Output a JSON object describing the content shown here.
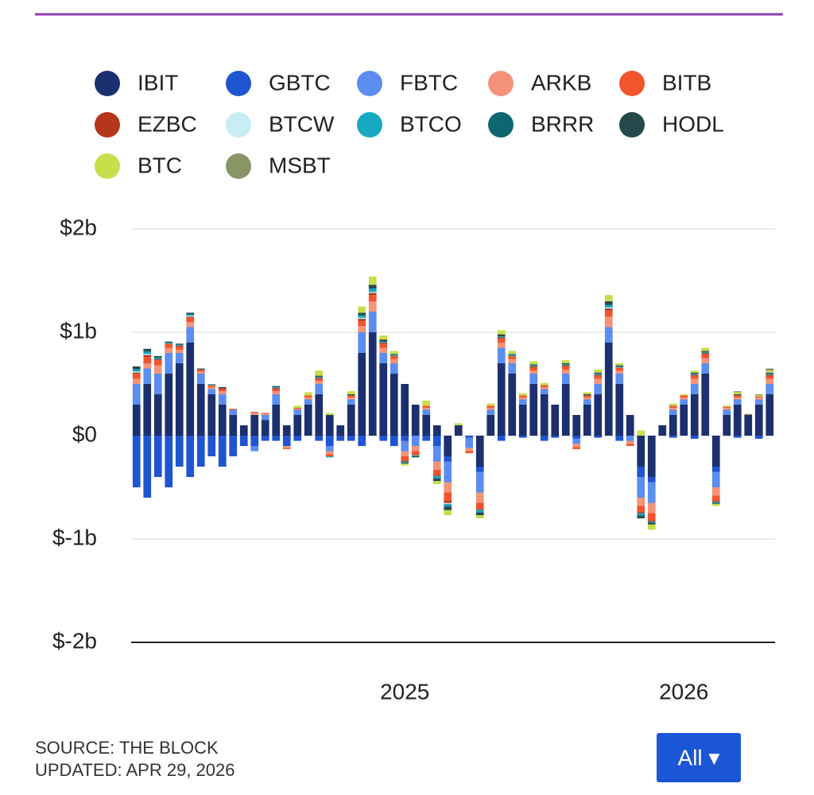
{
  "chart_data": {
    "type": "stacked-bar",
    "categories": [
      null,
      null,
      null,
      null,
      null,
      null,
      null,
      null,
      null,
      null,
      null,
      null,
      null,
      null,
      null,
      null,
      null,
      null,
      null,
      null,
      null,
      null,
      null,
      null,
      null,
      null,
      null,
      null,
      null,
      null,
      null,
      null,
      null,
      null,
      null,
      null,
      null,
      null,
      null,
      null,
      null,
      null,
      null,
      null,
      null,
      null,
      null,
      null,
      null,
      null,
      null,
      null,
      null,
      null,
      null,
      null,
      null,
      null,
      null,
      null
    ],
    "ylim": [
      -2,
      2
    ],
    "yticks": [
      {
        "value": -2,
        "label": "$-2b"
      },
      {
        "value": -1,
        "label": "$-1b"
      },
      {
        "value": 0,
        "label": "$0"
      },
      {
        "value": 1,
        "label": "$1b"
      },
      {
        "value": 2,
        "label": "$2b"
      }
    ],
    "xticks": [
      {
        "value": 25,
        "label": "2025"
      },
      {
        "value": 51,
        "label": "2026"
      }
    ],
    "grid": true,
    "legend": "top",
    "series": [
      {
        "name": "IBIT",
        "color": "#1c2f6e",
        "values": [
          0.3,
          0.5,
          0.4,
          0.6,
          0.7,
          0.9,
          0.5,
          0.4,
          0.3,
          0.2,
          0.1,
          0.2,
          0.15,
          0.3,
          0.1,
          0.2,
          0.3,
          0.4,
          0.2,
          0.1,
          0.3,
          0.8,
          1.0,
          0.7,
          0.6,
          0.5,
          0.3,
          0.2,
          0.1,
          -0.2,
          0.1,
          0,
          -0.3,
          0.2,
          0.7,
          0.6,
          0.3,
          0.5,
          0.4,
          0.3,
          0.5,
          0.2,
          0.3,
          0.4,
          0.9,
          0.5,
          0.2,
          -0.3,
          -0.4,
          0.1,
          0.2,
          0.3,
          0.4,
          0.6,
          -0.3,
          0.2,
          0.3,
          0.2,
          0.3,
          0.4
        ]
      },
      {
        "name": "GBTC",
        "color": "#1f55d0",
        "values": [
          -0.5,
          -0.6,
          -0.4,
          -0.5,
          -0.3,
          -0.4,
          -0.3,
          -0.2,
          -0.3,
          -0.2,
          -0.1,
          -0.1,
          -0.05,
          -0.05,
          -0.1,
          -0.05,
          0,
          -0.05,
          -0.1,
          -0.05,
          -0.05,
          -0.1,
          0,
          -0.05,
          -0.1,
          -0.05,
          0,
          -0.05,
          -0.1,
          -0.05,
          0,
          -0.02,
          -0.05,
          0,
          -0.05,
          0,
          -0.02,
          0,
          -0.05,
          -0.02,
          0,
          -0.03,
          0,
          -0.02,
          0,
          -0.05,
          0,
          -0.1,
          -0.05,
          0,
          -0.02,
          0,
          -0.03,
          0,
          -0.05,
          0,
          -0.02,
          0,
          -0.03,
          0
        ]
      },
      {
        "name": "FBTC",
        "color": "#5b8ef0",
        "values": [
          0.2,
          0.15,
          0.2,
          0.2,
          0.1,
          0.15,
          0.1,
          0.05,
          0.1,
          0.05,
          0,
          -0.05,
          0.05,
          0.1,
          0,
          0.05,
          0.05,
          0.1,
          -0.05,
          0,
          0.05,
          0.2,
          0.2,
          0.1,
          0.1,
          -0.1,
          -0.1,
          0.05,
          -0.15,
          -0.2,
          0,
          -0.1,
          -0.2,
          0.05,
          0.15,
          0.1,
          0.05,
          0.1,
          0.05,
          0,
          0.1,
          -0.05,
          0.05,
          0.1,
          0.15,
          0.1,
          -0.05,
          -0.2,
          -0.2,
          0,
          0.05,
          0.05,
          0.1,
          0.1,
          -0.15,
          0.05,
          0.05,
          0,
          0.05,
          0.1
        ]
      },
      {
        "name": "ARKB",
        "color": "#f4937a",
        "values": [
          0.05,
          0.05,
          0.08,
          0.05,
          0.03,
          0.05,
          0.02,
          0.02,
          0.03,
          0,
          0,
          0.02,
          0.01,
          0.03,
          -0.02,
          0.01,
          0.02,
          0.03,
          -0.03,
          0,
          0.02,
          0.06,
          0.1,
          0.05,
          0.04,
          -0.05,
          -0.05,
          0.02,
          -0.08,
          -0.1,
          0,
          -0.03,
          -0.1,
          0.02,
          0.05,
          0.04,
          0.02,
          0.03,
          0.02,
          0,
          0.04,
          -0.03,
          0.02,
          0.05,
          0.1,
          0.03,
          -0.03,
          -0.08,
          -0.1,
          0,
          0.02,
          0.02,
          0.05,
          0.05,
          -0.08,
          0.02,
          0.02,
          0,
          0.02,
          0.05
        ]
      },
      {
        "name": "BITB",
        "color": "#f2552c",
        "values": [
          0.05,
          0.06,
          0.05,
          0.04,
          0.03,
          0.04,
          0.02,
          0.02,
          0.02,
          0.01,
          0,
          0.01,
          0.01,
          0.02,
          -0.01,
          0.01,
          0.02,
          0.02,
          -0.02,
          0,
          0.02,
          0.05,
          0.06,
          0.04,
          0.03,
          -0.04,
          -0.04,
          0.02,
          -0.05,
          -0.08,
          0,
          -0.02,
          -0.06,
          0.02,
          0.04,
          0.03,
          0.02,
          0.03,
          0.02,
          0,
          0.03,
          -0.02,
          0.02,
          0.03,
          0.06,
          0.03,
          -0.02,
          -0.06,
          -0.07,
          0,
          0.02,
          0.02,
          0.03,
          0.04,
          -0.05,
          0.01,
          0.02,
          0,
          0.01,
          0.03
        ]
      },
      {
        "name": "EZBC",
        "color": "#b5361c",
        "values": [
          0.01,
          0.02,
          0.01,
          0,
          0.01,
          0.01,
          0,
          0,
          0.01,
          0,
          0,
          0,
          0,
          0.01,
          0,
          0,
          0,
          0.01,
          0,
          0,
          0,
          0.02,
          0.02,
          0.01,
          0,
          -0.01,
          0,
          0,
          -0.01,
          -0.02,
          0,
          0,
          -0.01,
          0,
          0.01,
          0,
          0,
          0.01,
          0,
          0,
          0.01,
          0,
          0,
          0.01,
          0.02,
          0,
          0,
          -0.01,
          -0.01,
          0,
          0,
          0,
          0.01,
          0.01,
          -0.01,
          0,
          0,
          0,
          0,
          0.01
        ]
      },
      {
        "name": "BTCW",
        "color": "#c8eef5",
        "values": [
          0.01,
          0.01,
          0,
          0,
          0,
          0.01,
          0,
          0,
          0,
          0,
          0,
          0,
          0,
          0,
          0,
          0,
          0,
          0,
          0,
          0,
          0,
          0.01,
          0.01,
          0,
          0,
          0,
          0,
          0,
          0,
          -0.01,
          0,
          0,
          0,
          0,
          0,
          0,
          0,
          0,
          0,
          0,
          0,
          0,
          0,
          0,
          0.01,
          0,
          0,
          0,
          0,
          0,
          0,
          0,
          0,
          0,
          0,
          0,
          0,
          0,
          0,
          0
        ]
      },
      {
        "name": "BTCO",
        "color": "#17a9c2",
        "values": [
          0.02,
          0.02,
          0.01,
          0.01,
          0.01,
          0.01,
          0,
          0.01,
          0,
          0,
          0,
          0,
          0,
          0.01,
          0,
          0,
          0,
          0.01,
          -0.01,
          0,
          0,
          0.02,
          0.03,
          0.01,
          0.01,
          -0.01,
          -0.01,
          0,
          -0.02,
          -0.02,
          0,
          0,
          -0.02,
          0,
          0.01,
          0.01,
          0,
          0.01,
          0,
          0,
          0.01,
          0,
          0,
          0.01,
          0.02,
          0.01,
          0,
          -0.02,
          -0.01,
          0,
          0,
          0,
          0.01,
          0.01,
          -0.01,
          0,
          0,
          0,
          0,
          0.01
        ]
      },
      {
        "name": "BRRR",
        "color": "#0e6670",
        "values": [
          0.01,
          0.01,
          0.01,
          0,
          0,
          0.01,
          0,
          0,
          0,
          0,
          0,
          0,
          0,
          0,
          0,
          0,
          0,
          0,
          0,
          0,
          0,
          0.01,
          0.01,
          0,
          0,
          0,
          0,
          0,
          -0.01,
          -0.01,
          0,
          0,
          -0.01,
          0,
          0,
          0,
          0,
          0,
          0,
          0,
          0,
          0,
          0,
          0,
          0.01,
          0,
          0,
          -0.01,
          0,
          0,
          0,
          0,
          0,
          0,
          0,
          0,
          0,
          0,
          0,
          0
        ]
      },
      {
        "name": "HODL",
        "color": "#25484a",
        "values": [
          0.02,
          0.02,
          0.01,
          0.01,
          0.01,
          0.01,
          0.01,
          0,
          0.01,
          0,
          0,
          0,
          0,
          0.01,
          0,
          0,
          0,
          0.01,
          0,
          0,
          0.01,
          0.02,
          0.03,
          0.02,
          0.01,
          -0.01,
          -0.01,
          0,
          -0.02,
          -0.03,
          0,
          0,
          -0.02,
          0,
          0.02,
          0.01,
          0,
          0.01,
          0,
          0,
          0.01,
          0,
          0.01,
          0.01,
          0.03,
          0.01,
          0,
          -0.02,
          -0.02,
          0,
          0,
          0,
          0.01,
          0.01,
          -0.01,
          0,
          0.01,
          0,
          0,
          0.01
        ]
      },
      {
        "name": "BTC",
        "color": "#c5e04a",
        "values": [
          0,
          0,
          0,
          0,
          0,
          0,
          0,
          0,
          0,
          0,
          0,
          0,
          0,
          0,
          0,
          0.02,
          0.03,
          0.05,
          0.02,
          0,
          0.03,
          0.06,
          0.08,
          0.04,
          0.03,
          -0.02,
          0,
          0.05,
          -0.03,
          -0.05,
          0.02,
          0,
          -0.03,
          0.02,
          0.04,
          0.03,
          0.02,
          0.03,
          0.02,
          0,
          0.03,
          0,
          0.02,
          0.03,
          0.06,
          0.02,
          0,
          0.05,
          -0.05,
          0,
          0.02,
          0.01,
          0.02,
          0.03,
          -0.02,
          0.01,
          0.02,
          0,
          0.01,
          0.02
        ]
      },
      {
        "name": "MSBT",
        "color": "#8a9565",
        "values": [
          0,
          0,
          0,
          0,
          0,
          0,
          0,
          0,
          0,
          0,
          0,
          0,
          0,
          0,
          0,
          0,
          0,
          0,
          0,
          0,
          0,
          0,
          0,
          0,
          0,
          0,
          0,
          0,
          0,
          0,
          0,
          0,
          0,
          0,
          0,
          0,
          0,
          0,
          0,
          0,
          0,
          0,
          0,
          0,
          0,
          0,
          0,
          0,
          0,
          0,
          0,
          0,
          0,
          0,
          0,
          0,
          0.01,
          0.01,
          0.01,
          0.02
        ]
      }
    ]
  },
  "footer": {
    "source": "SOURCE: THE BLOCK",
    "updated": "UPDATED: APR 29, 2026"
  },
  "range_button": "All ▾"
}
